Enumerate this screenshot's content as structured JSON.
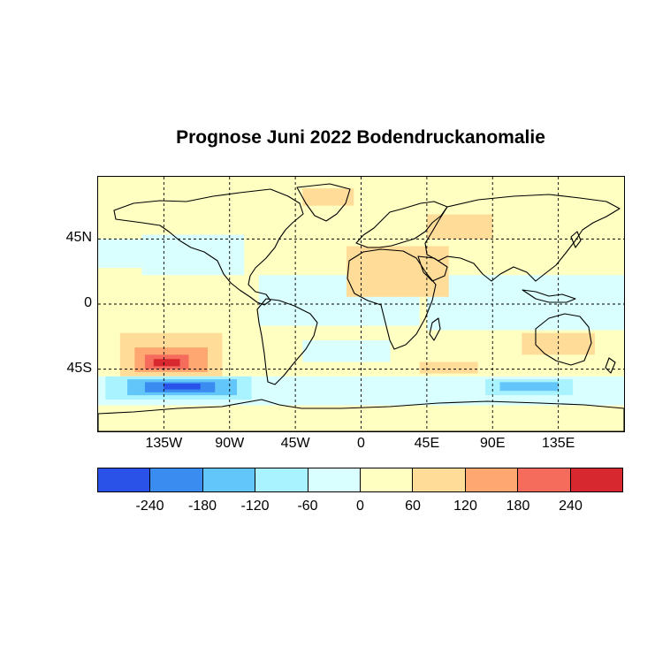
{
  "title": "Prognose Juni 2022 Bodendruckanomalie",
  "map": {
    "projection": "equirectangular",
    "lon_range": [
      -180,
      180
    ],
    "lat_range": [
      -88,
      88
    ],
    "background_color": "#ffffc2",
    "grid_style": "dashed",
    "lat_ticks": [
      {
        "value": 45,
        "label": "45N"
      },
      {
        "value": 0,
        "label": "0"
      },
      {
        "value": -45,
        "label": "45S"
      }
    ],
    "lon_ticks": [
      {
        "value": -135,
        "label": "135W"
      },
      {
        "value": -90,
        "label": "90W"
      },
      {
        "value": -45,
        "label": "45W"
      },
      {
        "value": 0,
        "label": "0"
      },
      {
        "value": 45,
        "label": "45E"
      },
      {
        "value": 90,
        "label": "90E"
      },
      {
        "value": 135,
        "label": "135E"
      }
    ]
  },
  "anomaly_regions": [
    {
      "name": "north-atlantic-positive",
      "lon": [
        -40,
        -5
      ],
      "lat": [
        68,
        80
      ],
      "color": "#ffdd99"
    },
    {
      "name": "north-pacific-negative",
      "lon": [
        -180,
        -150
      ],
      "lat": [
        25,
        45
      ],
      "color": "#d9ffff"
    },
    {
      "name": "eastern-pacific-negative",
      "lon": [
        -150,
        -80
      ],
      "lat": [
        20,
        48
      ],
      "color": "#d9ffff"
    },
    {
      "name": "tropical-atlantic-negative",
      "lon": [
        -70,
        40
      ],
      "lat": [
        -15,
        20
      ],
      "color": "#d9ffff"
    },
    {
      "name": "indian-ocean-negative",
      "lon": [
        45,
        180
      ],
      "lat": [
        -18,
        20
      ],
      "color": "#d9ffff"
    },
    {
      "name": "africa-middle-east-positive",
      "lon": [
        -10,
        60
      ],
      "lat": [
        5,
        40
      ],
      "color": "#ffdd99"
    },
    {
      "name": "central-asia-positive",
      "lon": [
        45,
        90
      ],
      "lat": [
        45,
        62
      ],
      "color": "#ffdd99"
    },
    {
      "name": "south-atlantic-negative",
      "lon": [
        -40,
        20
      ],
      "lat": [
        -40,
        -25
      ],
      "color": "#d9ffff"
    },
    {
      "name": "south-pacific-positive-outer",
      "lon": [
        -165,
        -95
      ],
      "lat": [
        -50,
        -20
      ],
      "color": "#ffdd99"
    },
    {
      "name": "south-pacific-positive-mid",
      "lon": [
        -155,
        -105
      ],
      "lat": [
        -47,
        -30
      ],
      "color": "#ffa770"
    },
    {
      "name": "south-pacific-positive-inner",
      "lon": [
        -148,
        -118
      ],
      "lat": [
        -45,
        -35
      ],
      "color": "#f56b5c"
    },
    {
      "name": "south-pacific-positive-core",
      "lon": [
        -142,
        -124
      ],
      "lat": [
        -43,
        -38
      ],
      "color": "#d7282f"
    },
    {
      "name": "southern-ocean-negative-band",
      "lon": [
        -180,
        180
      ],
      "lat": [
        -70,
        -50
      ],
      "color": "#d9ffff"
    },
    {
      "name": "southern-pacific-negative-outer",
      "lon": [
        -175,
        -75
      ],
      "lat": [
        -66,
        -50
      ],
      "color": "#a9f2ff"
    },
    {
      "name": "southern-pacific-negative-mid",
      "lon": [
        -160,
        -85
      ],
      "lat": [
        -63,
        -52
      ],
      "color": "#63c6fa"
    },
    {
      "name": "southern-pacific-negative-inner",
      "lon": [
        -148,
        -100
      ],
      "lat": [
        -61,
        -54
      ],
      "color": "#3a8cf0"
    },
    {
      "name": "southern-pacific-negative-core",
      "lon": [
        -135,
        -110
      ],
      "lat": [
        -59,
        -55
      ],
      "color": "#2a52e8"
    },
    {
      "name": "southern-indian-negative-outer",
      "lon": [
        85,
        145
      ],
      "lat": [
        -63,
        -52
      ],
      "color": "#a9f2ff"
    },
    {
      "name": "southern-indian-negative-mid",
      "lon": [
        95,
        135
      ],
      "lat": [
        -60,
        -54
      ],
      "color": "#63c6fa"
    },
    {
      "name": "southern-indian-positive",
      "lon": [
        40,
        80
      ],
      "lat": [
        -48,
        -40
      ],
      "color": "#ffdd99"
    },
    {
      "name": "australia-positive",
      "lon": [
        110,
        160
      ],
      "lat": [
        -35,
        -20
      ],
      "color": "#ffdd99"
    },
    {
      "name": "antarctic-positive",
      "lon": [
        -180,
        180
      ],
      "lat": [
        -88,
        -72
      ],
      "color": "#ffffc2"
    }
  ],
  "colorbar": {
    "colors": [
      "#2a52e8",
      "#3a8cf0",
      "#63c6fa",
      "#a9f2ff",
      "#d9ffff",
      "#ffffc2",
      "#ffdd99",
      "#ffa770",
      "#f56b5c",
      "#d7282f"
    ],
    "labels": [
      "-240",
      "-180",
      "-120",
      "-60",
      "0",
      "60",
      "120",
      "180",
      "240"
    ]
  }
}
